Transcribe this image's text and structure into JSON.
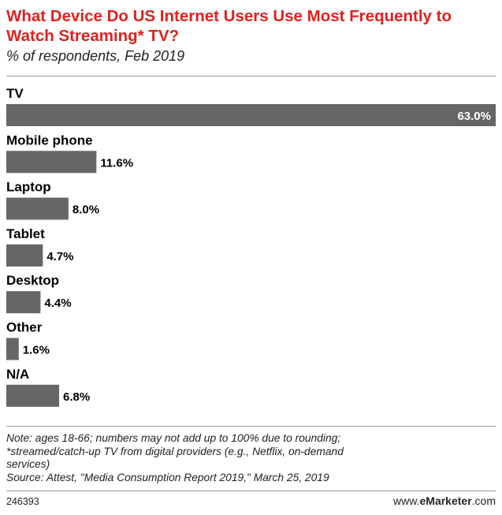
{
  "chart_data": {
    "type": "bar",
    "orientation": "horizontal",
    "title": "What Device Do US Internet Users Use Most Frequently to Watch Streaming* TV?",
    "subtitle": "% of respondents, Feb 2019",
    "categories": [
      "TV",
      "Mobile phone",
      "Laptop",
      "Tablet",
      "Desktop",
      "Other",
      "N/A"
    ],
    "values": [
      63.0,
      11.6,
      8.0,
      4.7,
      4.4,
      1.6,
      6.8
    ],
    "value_labels": [
      "63.0%",
      "11.6%",
      "8.0%",
      "4.7%",
      "4.4%",
      "1.6%",
      "6.8%"
    ],
    "xlim": [
      0,
      63.0
    ],
    "grid": false,
    "legend": "none",
    "bar_color": "#666666"
  },
  "notes": {
    "line1": "Note: ages 18-66; numbers may not add up to 100% due to rounding;",
    "line2": "*streamed/catch-up TV from digital providers (e.g., Netflix, on-demand",
    "line3": "services)",
    "line4": "Source: Attest, \"Media Consumption Report 2019,\" March 25, 2019"
  },
  "footer": {
    "chart_id": "246393",
    "brand_prefix": "www.",
    "brand_name": "eMarketer",
    "brand_suffix": ".com"
  }
}
